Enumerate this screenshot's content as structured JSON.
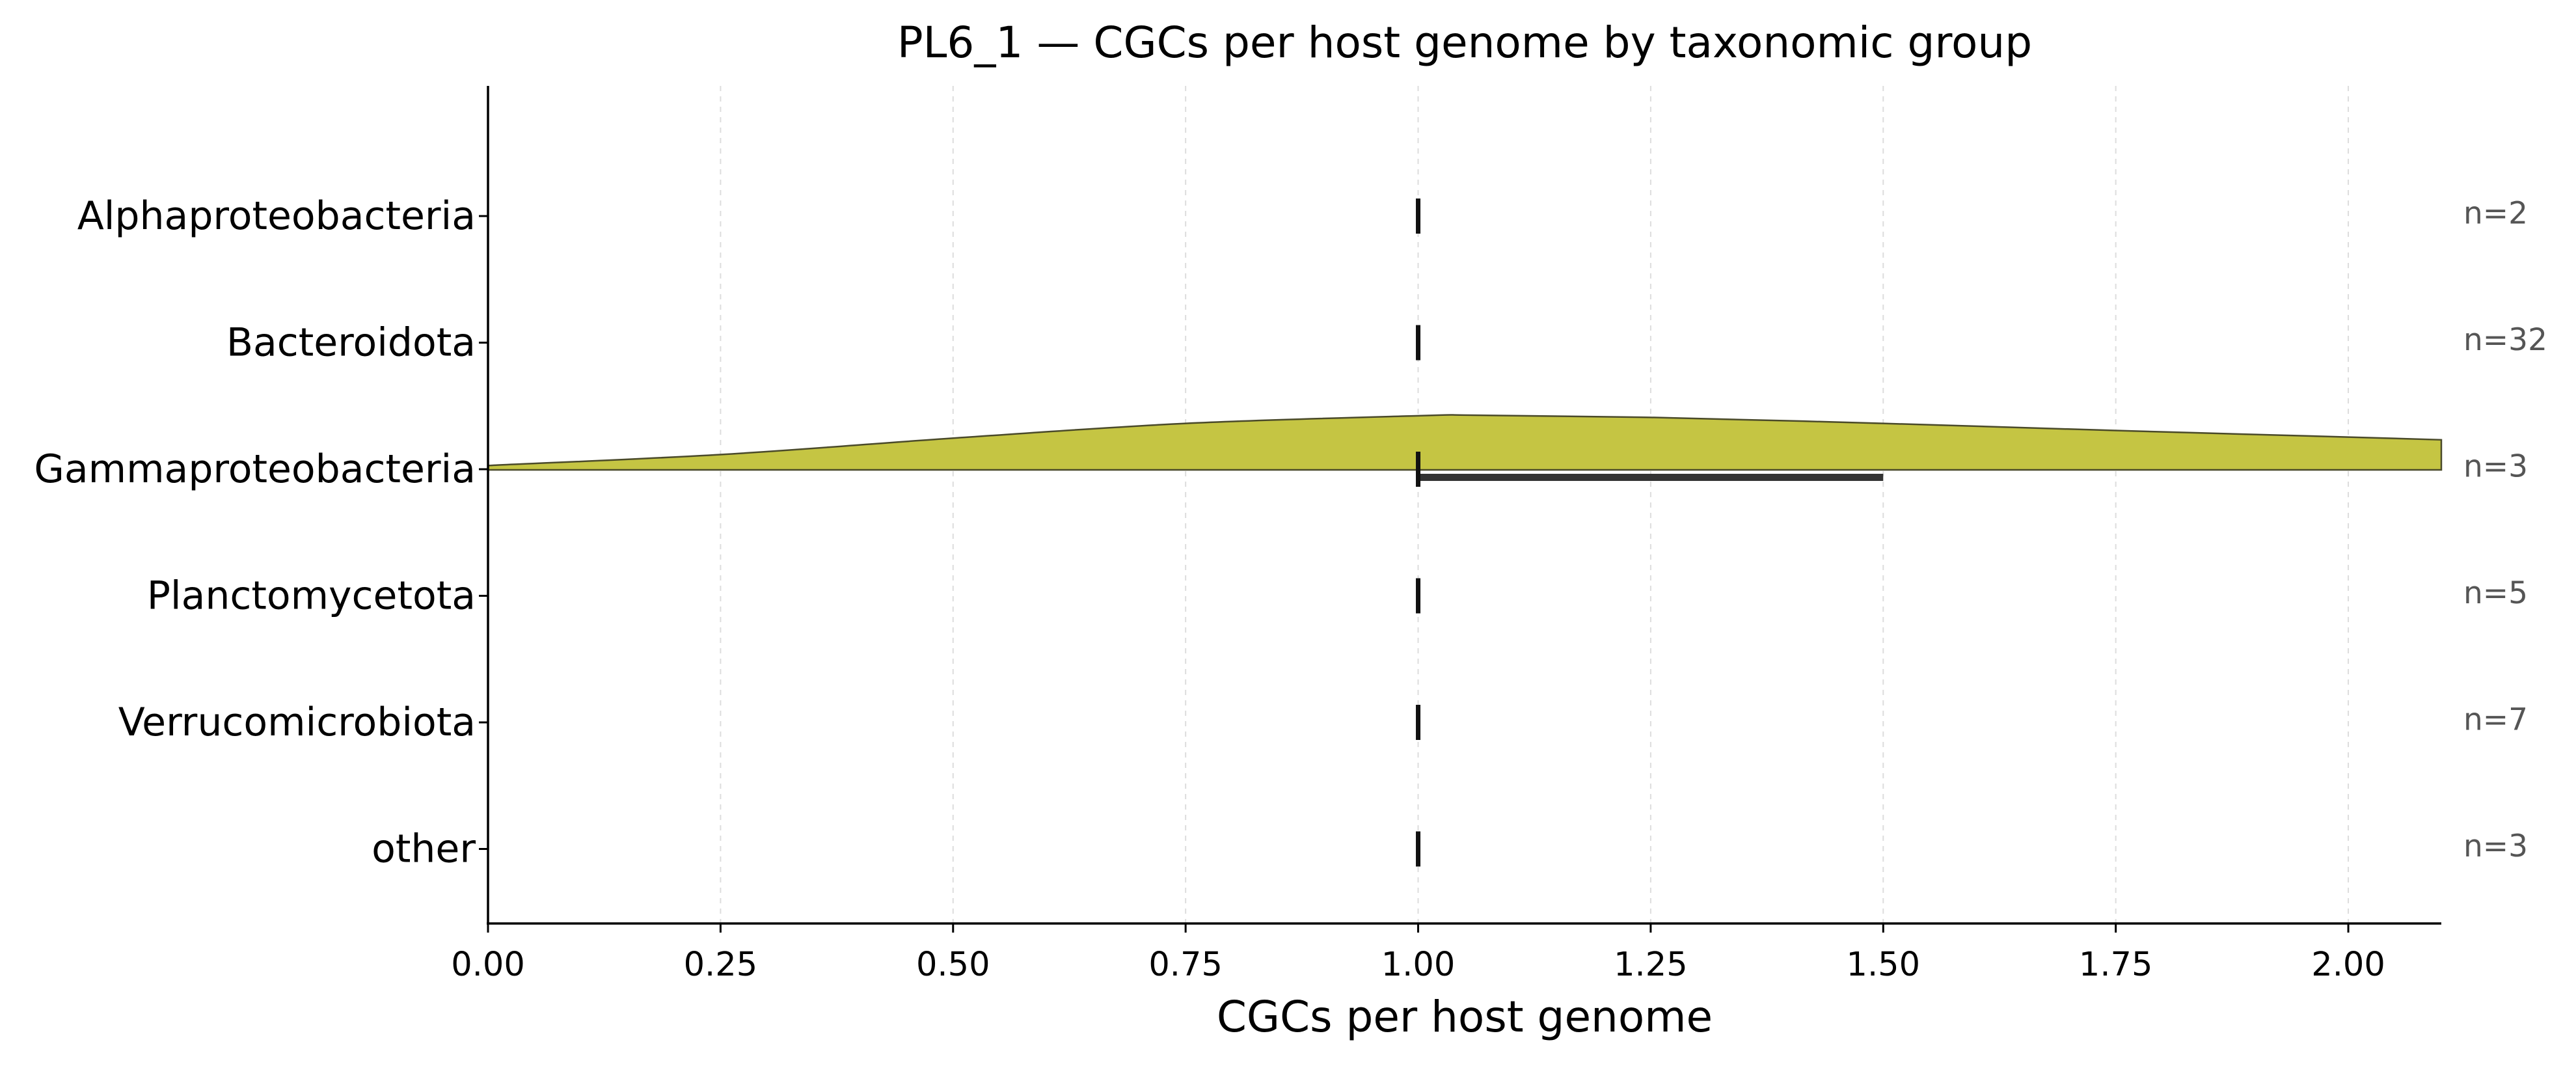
{
  "chart_data": {
    "type": "violin",
    "title": "PL6_1 — CGCs per host genome by taxonomic group",
    "xlabel": "CGCs per host genome",
    "ylabel": "",
    "xlim": [
      0.0,
      2.1
    ],
    "xticks": [
      0.0,
      0.25,
      0.5,
      0.75,
      1.0,
      1.25,
      1.5,
      1.75,
      2.0
    ],
    "xtick_labels": [
      "0.00",
      "0.25",
      "0.50",
      "0.75",
      "1.00",
      "1.25",
      "1.50",
      "1.75",
      "2.00"
    ],
    "grid": "x-dashed",
    "categories": [
      "Alphaproteobacteria",
      "Bacteroidota",
      "Gammaproteobacteria",
      "Planctomycetota",
      "Verrucomicrobiota",
      "other"
    ],
    "counts": [
      "n=2",
      "n=32",
      "n=3",
      "n=5",
      "n=7",
      "n=3"
    ],
    "medians": [
      1.0,
      1.0,
      1.0,
      1.0,
      1.0,
      1.0
    ],
    "iqr": [
      [
        1.0,
        1.0
      ],
      [
        1.0,
        1.0
      ],
      [
        1.0,
        1.5
      ],
      [
        1.0,
        1.0
      ],
      [
        1.0,
        1.0
      ],
      [
        1.0,
        1.0
      ]
    ],
    "density": {
      "category": "Gammaproteobacteria",
      "x": [
        0.0,
        0.25,
        0.5,
        0.75,
        1.0,
        1.06,
        1.25,
        1.5,
        1.75,
        2.0,
        2.1
      ],
      "relative_height": [
        0.08,
        0.28,
        0.58,
        0.85,
        0.99,
        1.0,
        0.96,
        0.85,
        0.72,
        0.6,
        0.55
      ]
    },
    "colors": {
      "violin_fill": "#c5c543",
      "violin_edge": "#4a4a2a",
      "median": "#111111",
      "iqr": "#333333",
      "count_text": "#555555",
      "grid": "#dddddd"
    }
  }
}
